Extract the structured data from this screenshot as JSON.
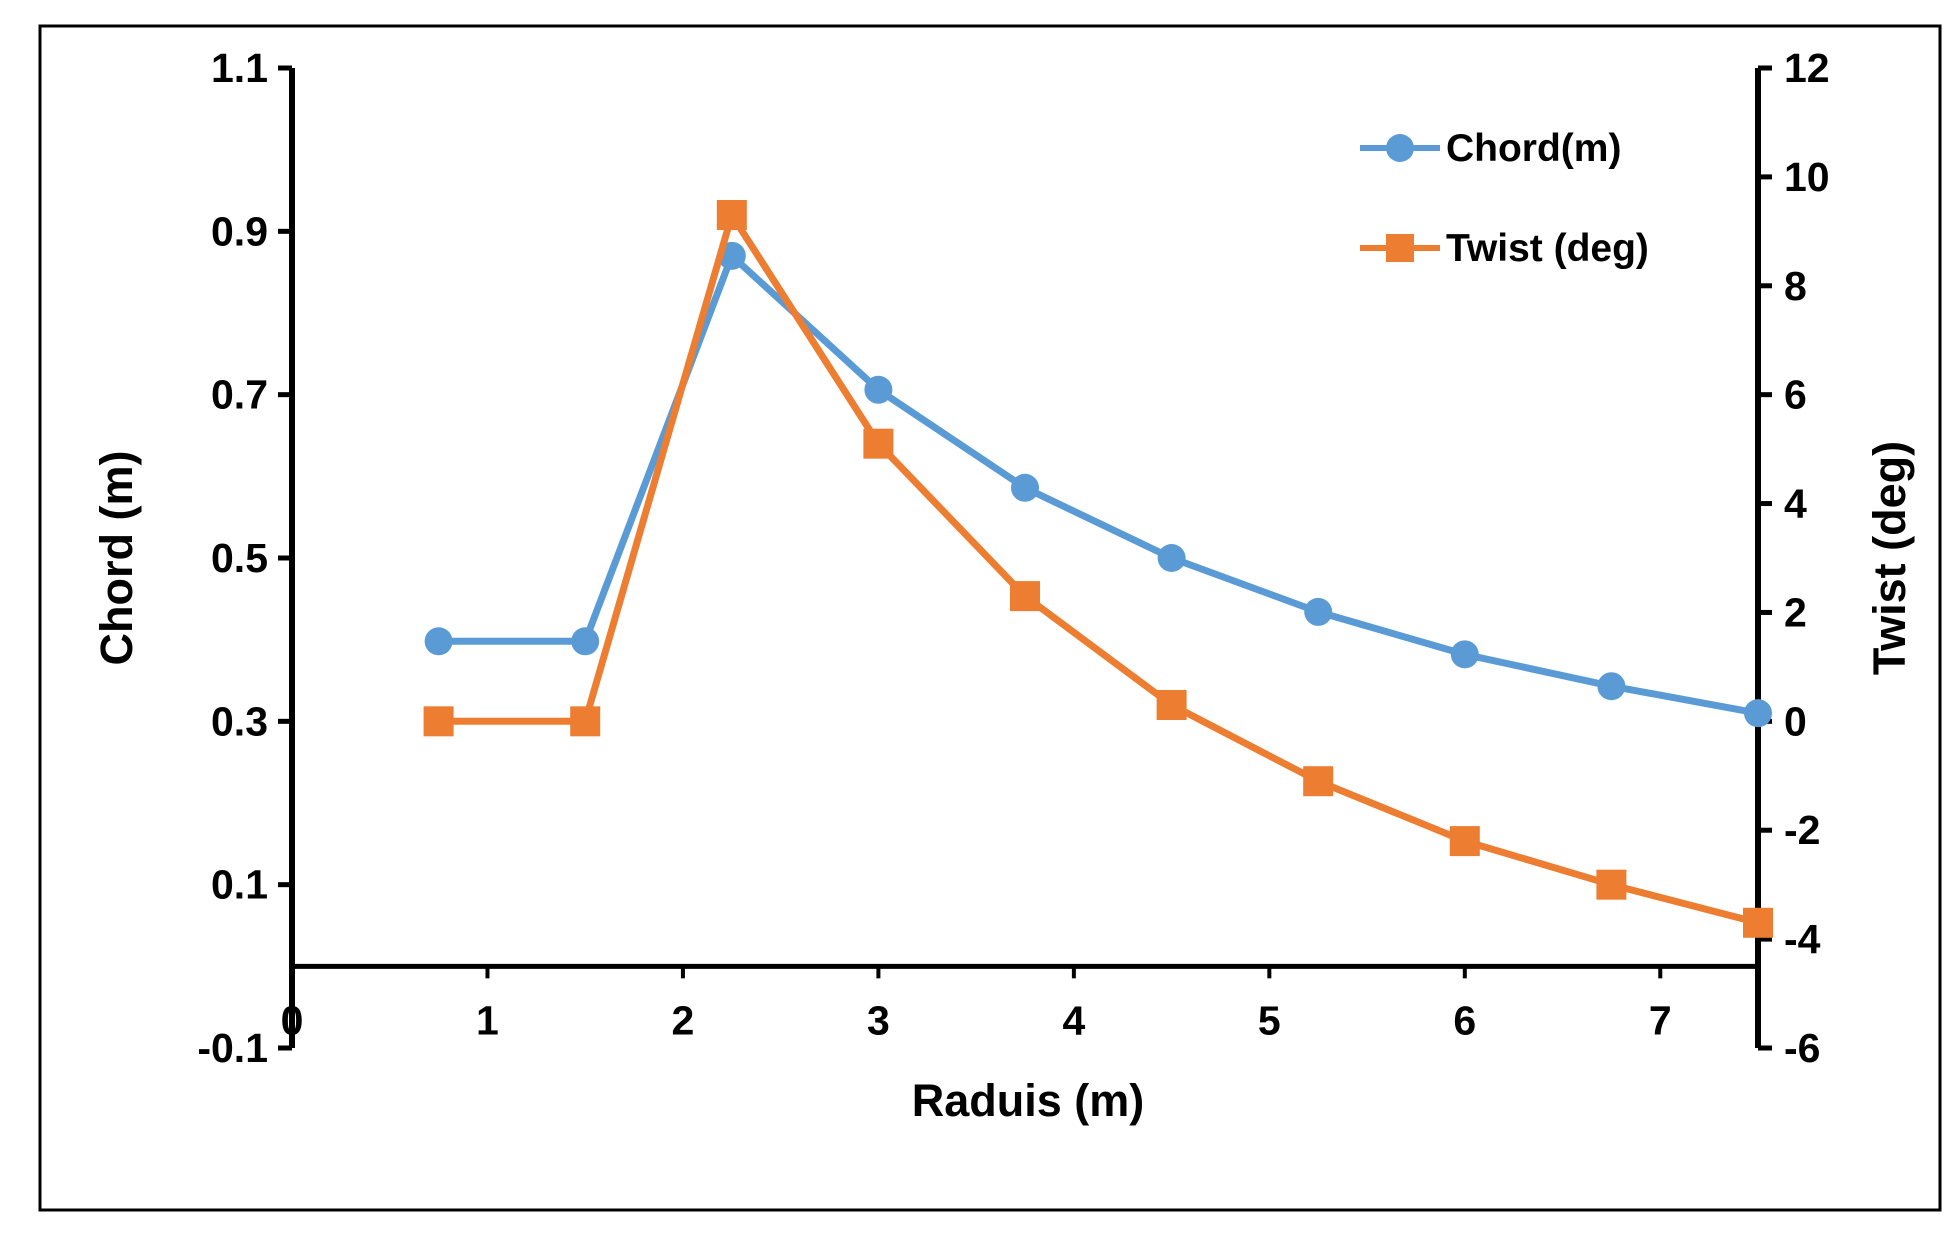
{
  "chart_data": {
    "type": "line",
    "title": "",
    "xlabel": "Raduis (m)",
    "ylabel": "Chord (m)",
    "y2label": "Twist (deg)",
    "xlim": [
      0,
      7.5
    ],
    "ylim": [
      -0.1,
      1.1
    ],
    "y2lim": [
      -6,
      12
    ],
    "x_ticks": [
      "0",
      "1",
      "2",
      "3",
      "4",
      "5",
      "6",
      "7"
    ],
    "y_ticks": [
      "1.1",
      "0.9",
      "0.7",
      "0.5",
      "0.3",
      "0.1",
      "-0.1"
    ],
    "y2_ticks": [
      "12",
      "10",
      "8",
      "6",
      "4",
      "2",
      "0",
      "-2",
      "-4",
      "-6"
    ],
    "x": [
      0.75,
      1.5,
      2.25,
      3.0,
      3.75,
      4.5,
      5.25,
      6.0,
      6.75,
      7.5
    ],
    "series": [
      {
        "name": "Chord(m)",
        "axis": "left",
        "marker": "circle",
        "color": "#5B9BD5",
        "values": [
          0.398,
          0.398,
          0.87,
          0.706,
          0.586,
          0.5,
          0.434,
          0.382,
          0.343,
          0.31
        ]
      },
      {
        "name": "Twist (deg)",
        "axis": "right",
        "marker": "square",
        "color": "#ED7D31",
        "values": [
          0.0,
          0.0,
          9.3,
          5.1,
          2.3,
          0.3,
          -1.1,
          -2.2,
          -3.0,
          -3.7
        ]
      }
    ],
    "legend_position": "top-right",
    "grid": false
  }
}
